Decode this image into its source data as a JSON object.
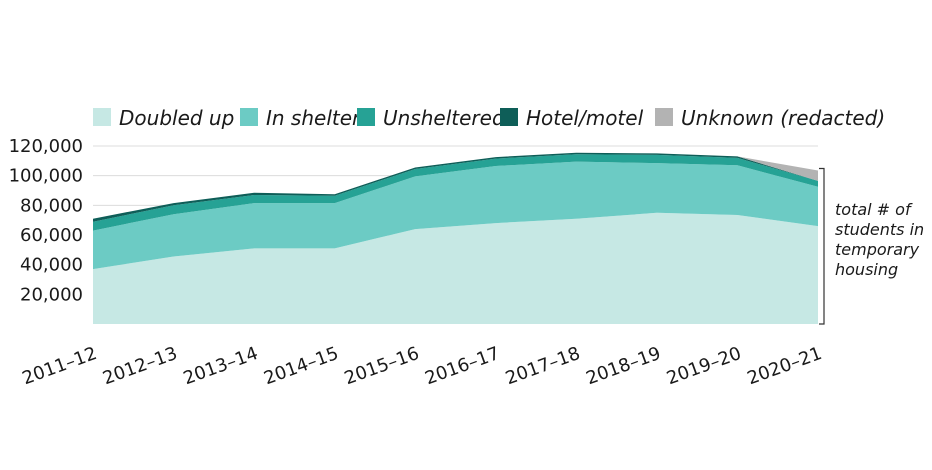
{
  "chart_data": {
    "type": "area",
    "stacked": true,
    "categories": [
      "2011–12",
      "2012–13",
      "2013–14",
      "2014–15",
      "2015–16",
      "2016–17",
      "2017–18",
      "2018–19",
      "2019–20",
      "2020–21"
    ],
    "series": [
      {
        "name": "Doubled up",
        "color": "#c6e8e4",
        "values": [
          37000,
          45500,
          51000,
          51000,
          64000,
          68000,
          71000,
          75000,
          73500,
          66000
        ]
      },
      {
        "name": "In shelter",
        "color": "#6ccbc4",
        "values": [
          26000,
          28500,
          30500,
          30500,
          35500,
          38500,
          38500,
          33500,
          33500,
          26500
        ]
      },
      {
        "name": "Unsheltered",
        "color": "#26a295",
        "values": [
          6000,
          6000,
          5500,
          5000,
          5000,
          5000,
          5000,
          5500,
          5000,
          4000
        ]
      },
      {
        "name": "Hotel/motel",
        "color": "#0e5e58",
        "values": [
          2000,
          1500,
          1500,
          1000,
          1000,
          1000,
          1000,
          1000,
          1000,
          0
        ]
      },
      {
        "name": "Unknown (redacted)",
        "color": "#b3b3b3",
        "values": [
          0,
          0,
          0,
          0,
          0,
          0,
          0,
          0,
          0,
          7000
        ]
      }
    ],
    "yticks": [
      "20,000",
      "40,000",
      "60,000",
      "80,000",
      "100,000",
      "120,000"
    ],
    "ytick_values": [
      20000,
      40000,
      60000,
      80000,
      100000,
      120000
    ],
    "ylim": [
      0,
      120000
    ],
    "gridlines": true,
    "legend_position": "top",
    "annotation": "total # of students in temporary housing",
    "annotation_lines": [
      "total # of",
      "students in",
      "temporary",
      "housing"
    ],
    "title": "",
    "xlabel": "",
    "ylabel": ""
  }
}
